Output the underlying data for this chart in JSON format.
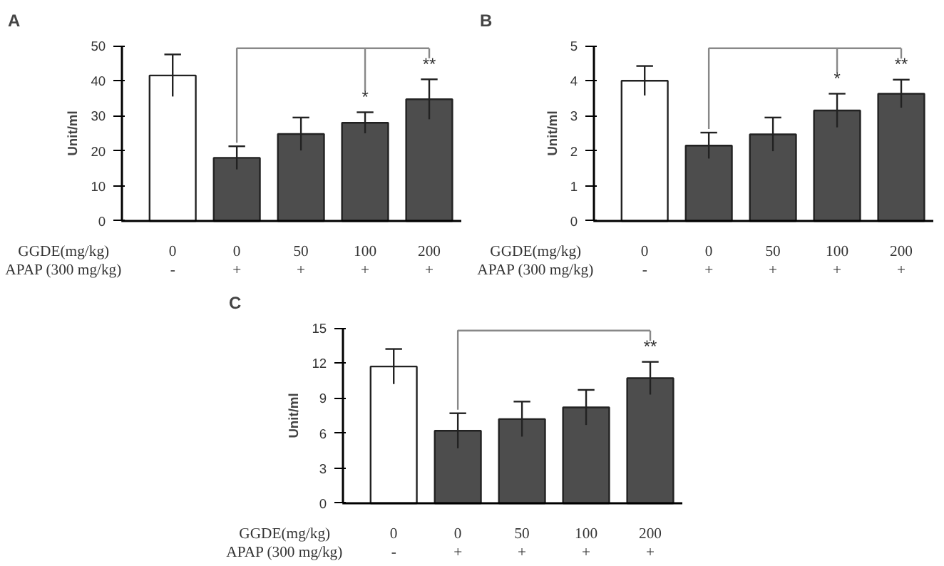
{
  "chart_data": [
    {
      "type": "bar",
      "title": "A",
      "ylabel": "Unit/ml",
      "categories": [
        "0\n-",
        "0\n+",
        "50\n+",
        "100\n+",
        "200\n+"
      ],
      "values": [
        41.5,
        18,
        24.8,
        28,
        34.7
      ],
      "errors": [
        6,
        3.3,
        4.7,
        3,
        5.7
      ],
      "colors": [
        "#ffffff",
        "#4d4d4d",
        "#4d4d4d",
        "#4d4d4d",
        "#4d4d4d"
      ],
      "ylim": [
        0,
        50
      ],
      "yticks": [
        0,
        10,
        20,
        30,
        40,
        50
      ],
      "annotations": [
        "GGDE(mg/kg)",
        "APAP (300 mg/kg)",
        "*",
        "**"
      ]
    },
    {
      "type": "bar",
      "title": "B",
      "ylabel": "Unit/ml",
      "categories": [
        "0\n-",
        "0\n+",
        "50\n+",
        "100\n+",
        "200\n+"
      ],
      "values": [
        4.0,
        2.15,
        2.47,
        3.15,
        3.63
      ],
      "errors": [
        0.42,
        0.37,
        0.48,
        0.48,
        0.4
      ],
      "colors": [
        "#ffffff",
        "#4d4d4d",
        "#4d4d4d",
        "#4d4d4d",
        "#4d4d4d"
      ],
      "ylim": [
        0,
        5
      ],
      "yticks": [
        0,
        1,
        2,
        3,
        4,
        5
      ],
      "annotations": [
        "GGDE(mg/kg)",
        "APAP (300 mg/kg)",
        "*",
        "**"
      ]
    },
    {
      "type": "bar",
      "title": "C",
      "ylabel": "Unit/ml",
      "categories": [
        "0\n-",
        "0\n+",
        "50\n+",
        "100\n+",
        "200\n+"
      ],
      "values": [
        11.7,
        6.2,
        7.2,
        8.2,
        10.7
      ],
      "errors": [
        1.5,
        1.5,
        1.5,
        1.5,
        1.4
      ],
      "colors": [
        "#ffffff",
        "#4d4d4d",
        "#4d4d4d",
        "#4d4d4d",
        "#4d4d4d"
      ],
      "ylim": [
        0,
        15
      ],
      "yticks": [
        0,
        3,
        6,
        9,
        12,
        15
      ],
      "annotations": [
        "GGDE(mg/kg)",
        "APAP (300 mg/kg)",
        "**"
      ]
    }
  ]
}
